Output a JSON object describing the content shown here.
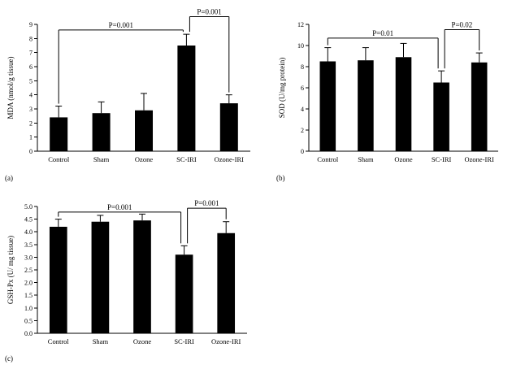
{
  "figure": {
    "background": "#ffffff",
    "bar_color": "#000000",
    "axis_color": "#000000"
  },
  "chart_data": [
    {
      "type": "bar",
      "panel_label": "(a)",
      "ylabel": "MDA (nmol/g tissue)",
      "categories": [
        "Control",
        "Sham",
        "Ozone",
        "SC-IRI",
        "Ozone-IRI"
      ],
      "values": [
        2.4,
        2.7,
        2.9,
        7.5,
        3.4
      ],
      "errors": [
        0.8,
        0.8,
        1.2,
        0.8,
        0.6
      ],
      "ylim": [
        0,
        9
      ],
      "ytick_step": 1,
      "ytick_decimals": 0,
      "grid": false,
      "annotations": [
        {
          "label": "P=0.001",
          "from": 0,
          "to": 3,
          "y": 8.6,
          "dx_to": -4
        },
        {
          "label": "P=0.001",
          "from": 3,
          "to": 4,
          "y": 9.55,
          "dx_from": 4
        }
      ]
    },
    {
      "type": "bar",
      "panel_label": "(b)",
      "ylabel": "SOD (U/mg protein)",
      "categories": [
        "Control",
        "Sham",
        "Ozone",
        "SC-IRI",
        "Ozone-IRI"
      ],
      "values": [
        8.5,
        8.6,
        8.9,
        6.5,
        8.4
      ],
      "errors": [
        1.3,
        1.2,
        1.3,
        1.1,
        0.9
      ],
      "ylim": [
        0,
        12
      ],
      "ytick_step": 2,
      "ytick_decimals": 0,
      "grid": false,
      "annotations": [
        {
          "label": "P=0.01",
          "from": 0,
          "to": 3,
          "y": 10.7,
          "dx_to": -4
        },
        {
          "label": "P=0.02",
          "from": 3,
          "to": 4,
          "y": 11.5,
          "dx_from": 4
        }
      ]
    },
    {
      "type": "bar",
      "panel_label": "(c)",
      "ylabel": "GSH-Px (U/ mg tissue)",
      "categories": [
        "Control",
        "Sham",
        "Ozone",
        "SC-IRI",
        "Ozone-IRI"
      ],
      "values": [
        4.2,
        4.4,
        4.45,
        3.1,
        3.95
      ],
      "errors": [
        0.3,
        0.25,
        0.25,
        0.35,
        0.45
      ],
      "ylim": [
        0,
        5
      ],
      "ytick_step": 0.5,
      "ytick_decimals": 1,
      "grid": false,
      "annotations": [
        {
          "label": "P=0.001",
          "from": 0,
          "to": 3,
          "y": 4.78,
          "dx_to": -4
        },
        {
          "label": "P=0.001",
          "from": 3,
          "to": 4,
          "y": 4.93,
          "dx_from": 4
        }
      ]
    }
  ]
}
